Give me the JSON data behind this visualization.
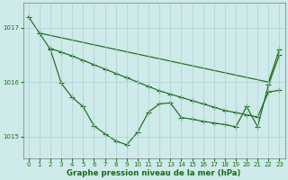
{
  "line1": {
    "x": [
      0,
      1,
      2,
      3,
      4,
      5,
      6,
      7,
      8,
      9,
      10,
      11,
      12,
      13,
      14,
      15,
      16,
      17,
      18,
      19,
      20,
      21,
      22,
      23
    ],
    "y": [
      1017.2,
      1016.9,
      null,
      null,
      null,
      null,
      null,
      null,
      null,
      null,
      null,
      null,
      null,
      null,
      null,
      null,
      null,
      null,
      null,
      null,
      null,
      null,
      1016.0,
      1016.6
    ]
  },
  "line2": {
    "x": [
      2,
      3,
      4,
      5,
      6,
      7,
      8,
      9,
      10,
      11,
      12,
      13,
      14,
      15,
      16,
      17,
      18,
      19,
      20,
      21,
      22,
      23
    ],
    "y": [
      1016.62,
      1016.55,
      1016.48,
      1016.4,
      1016.32,
      1016.24,
      1016.16,
      1016.08,
      1016.0,
      1015.92,
      1015.84,
      1015.78,
      1015.72,
      1015.66,
      1015.6,
      1015.54,
      1015.48,
      1015.44,
      1015.4,
      1015.36,
      1015.82,
      1015.85
    ]
  },
  "line3": {
    "x": [
      1,
      2,
      3,
      4,
      5,
      6,
      7,
      8,
      9,
      10,
      11,
      12,
      13,
      14,
      15,
      16,
      17,
      18,
      19,
      20,
      21,
      22,
      23
    ],
    "y": [
      1016.9,
      1016.6,
      1015.98,
      1015.72,
      1015.55,
      1015.2,
      1015.05,
      1014.92,
      1014.85,
      1015.08,
      1015.45,
      1015.6,
      1015.62,
      1015.35,
      1015.32,
      1015.28,
      1015.25,
      1015.22,
      1015.18,
      1015.55,
      1015.18,
      1015.95,
      1016.5
    ]
  },
  "line_color": "#1a6b1a",
  "bg_color": "#ceeaea",
  "grid_color": "#aed0d0",
  "xlabel": "Graphe pression niveau de la mer (hPa)",
  "xlim": [
    -0.5,
    23.5
  ],
  "ylim": [
    1014.6,
    1017.45
  ],
  "yticks": [
    1015,
    1016,
    1017
  ],
  "xticks": [
    0,
    1,
    2,
    3,
    4,
    5,
    6,
    7,
    8,
    9,
    10,
    11,
    12,
    13,
    14,
    15,
    16,
    17,
    18,
    19,
    20,
    21,
    22,
    23
  ]
}
